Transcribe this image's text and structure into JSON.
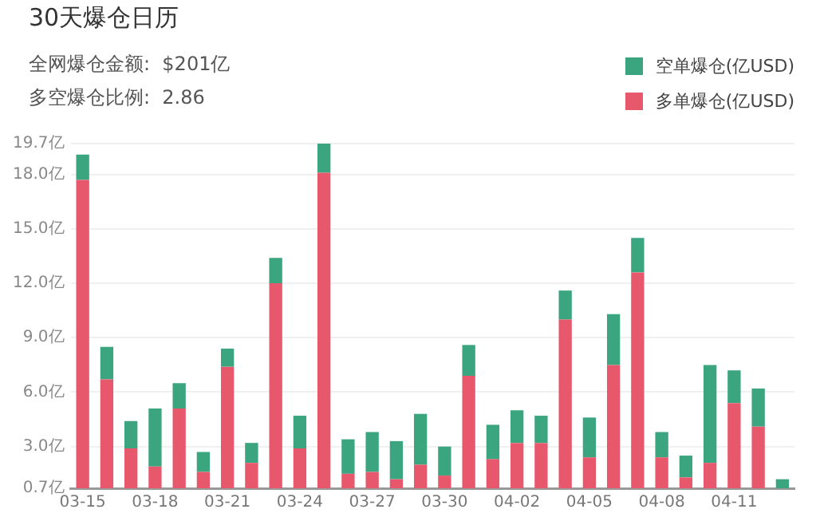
{
  "chart_data": {
    "type": "bar",
    "title": "30天爆仓日历",
    "annotations": [
      "全网爆仓金额:  $201亿",
      "多空爆仓比例:  2.86"
    ],
    "categories": [
      "03-15",
      null,
      null,
      "03-18",
      null,
      null,
      "03-21",
      null,
      null,
      "03-24",
      null,
      null,
      "03-27",
      null,
      null,
      "03-30",
      null,
      null,
      "04-02",
      null,
      null,
      "04-05",
      null,
      null,
      "04-08",
      null,
      null,
      "04-11",
      null,
      null
    ],
    "stacked": true,
    "series": [
      {
        "name": "多单爆仓(亿USD)",
        "color": "#e8586c",
        "values": [
          17.7,
          6.7,
          2.9,
          1.9,
          5.1,
          1.6,
          7.4,
          2.1,
          12.0,
          2.9,
          18.1,
          1.5,
          1.6,
          1.2,
          2.0,
          1.4,
          6.9,
          2.3,
          3.2,
          3.2,
          10.0,
          2.4,
          7.5,
          12.6,
          2.4,
          1.3,
          2.1,
          5.4,
          4.1,
          null
        ]
      },
      {
        "name": "空单爆仓(亿USD)",
        "color": "#3aa57f",
        "values": [
          1.4,
          1.8,
          1.5,
          3.2,
          1.4,
          1.1,
          1.0,
          1.1,
          1.4,
          1.8,
          1.6,
          1.9,
          2.2,
          2.1,
          2.8,
          1.6,
          1.7,
          1.9,
          1.8,
          1.5,
          1.6,
          2.2,
          2.8,
          1.9,
          1.4,
          1.2,
          5.4,
          1.8,
          2.1,
          1.2
        ]
      }
    ],
    "ylim": [
      0.7,
      19.7
    ],
    "yticks": [
      {
        "value": 0.7,
        "label": "0.7亿"
      },
      {
        "value": 3.0,
        "label": "3.0亿"
      },
      {
        "value": 6.0,
        "label": "6.0亿"
      },
      {
        "value": 9.0,
        "label": "9.0亿"
      },
      {
        "value": 12.0,
        "label": "12.0亿"
      },
      {
        "value": 15.0,
        "label": "15.0亿"
      },
      {
        "value": 18.0,
        "label": "18.0亿"
      },
      {
        "value": 19.7,
        "label": "19.7亿"
      }
    ],
    "grid": "y",
    "legend": "top right"
  }
}
